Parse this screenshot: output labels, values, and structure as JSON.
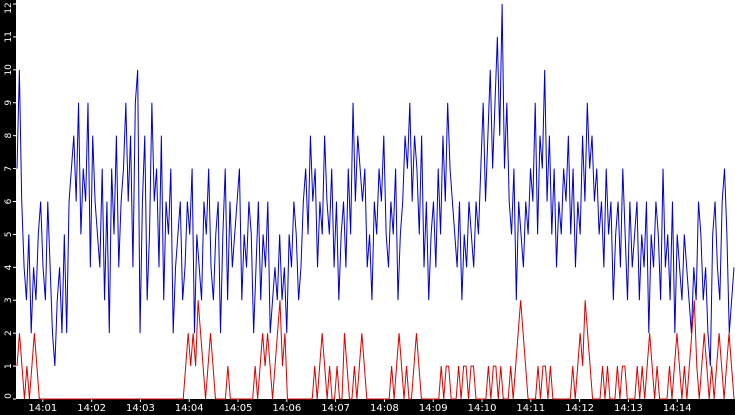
{
  "chart_data": {
    "type": "line",
    "title": "",
    "xlabel": "",
    "ylabel": "",
    "ylim": [
      0,
      12
    ],
    "xlim": [
      "14:00",
      "14:15"
    ],
    "y_ticks": [
      "0",
      "1",
      "2",
      "3",
      "4",
      "5",
      "6",
      "7",
      "8",
      "9",
      "10",
      "11",
      "12"
    ],
    "x_ticks": [
      "14:01",
      "14:02",
      "14:03",
      "14:04",
      "14:05",
      "14:06",
      "14:07",
      "14:08",
      "14:09",
      "14:10",
      "14:11",
      "14:12",
      "14:13",
      "14:14"
    ],
    "grid": false,
    "colors": {
      "background": "#ffffff",
      "axis_band": "#000000",
      "tick_text": "#ffffff"
    },
    "series": [
      {
        "color": "#0000cc",
        "sample_interval_seconds": 2.5,
        "values": [
          7,
          10,
          6,
          4,
          3,
          5,
          2,
          4,
          3,
          5,
          6,
          4,
          3,
          6,
          4,
          2,
          1,
          3,
          4,
          2,
          5,
          2,
          6,
          7,
          8,
          6,
          9,
          5,
          7,
          6,
          9,
          4,
          8,
          6,
          5,
          4,
          7,
          3,
          6,
          2,
          7,
          5,
          8,
          4,
          6,
          7,
          9,
          6,
          8,
          4,
          9,
          10,
          2,
          6,
          8,
          3,
          5,
          9,
          6,
          7,
          4,
          8,
          3,
          6,
          5,
          7,
          2,
          4,
          5,
          6,
          3,
          4,
          6,
          5,
          7,
          2,
          5,
          4,
          3,
          6,
          5,
          7,
          4,
          3,
          5,
          6,
          2,
          5,
          7,
          3,
          6,
          4,
          5,
          6,
          7,
          3,
          5,
          4,
          6,
          5,
          2,
          4,
          6,
          3,
          5,
          4,
          6,
          2,
          3,
          4,
          3,
          5,
          3,
          4,
          2,
          5,
          4,
          6,
          5,
          3,
          4,
          6,
          7,
          5,
          8,
          6,
          7,
          4,
          6,
          5,
          8,
          6,
          5,
          7,
          4,
          6,
          3,
          5,
          6,
          4,
          7,
          5,
          9,
          6,
          8,
          7,
          6,
          7,
          4,
          5,
          3,
          6,
          5,
          7,
          6,
          8,
          5,
          4,
          6,
          5,
          7,
          3,
          5,
          6,
          8,
          7,
          9,
          6,
          8,
          7,
          5,
          8,
          4,
          6,
          3,
          5,
          6,
          4,
          7,
          5,
          8,
          6,
          9,
          7,
          6,
          5,
          4,
          6,
          3,
          5,
          4,
          6,
          5,
          4,
          6,
          5,
          7,
          9,
          6,
          8,
          10,
          7,
          9,
          11,
          8,
          12,
          7,
          9,
          6,
          5,
          7,
          3,
          6,
          5,
          4,
          6,
          5,
          7,
          6,
          9,
          5,
          8,
          7,
          10,
          6,
          8,
          5,
          7,
          4,
          6,
          5,
          7,
          6,
          8,
          5,
          7,
          4,
          6,
          5,
          8,
          6,
          9,
          7,
          8,
          6,
          7,
          5,
          6,
          4,
          7,
          5,
          6,
          3,
          5,
          6,
          4,
          7,
          5,
          3,
          6,
          4,
          5,
          6,
          3,
          5,
          4,
          6,
          2,
          5,
          4,
          6,
          5,
          3,
          7,
          4,
          5,
          3,
          6,
          2,
          5,
          4,
          3,
          5,
          4,
          3,
          2,
          4,
          3,
          6,
          5,
          3,
          4,
          2,
          1,
          5,
          6,
          4,
          3,
          6,
          7,
          5,
          2,
          3,
          4
        ]
      },
      {
        "color": "#dd0000",
        "sample_interval_seconds": 2.5,
        "values": [
          1,
          2,
          1,
          0,
          1,
          0,
          1,
          2,
          1,
          0,
          0,
          0,
          0,
          0,
          0,
          0,
          0,
          0,
          0,
          0,
          0,
          0,
          0,
          0,
          0,
          0,
          0,
          0,
          0,
          0,
          0,
          0,
          0,
          0,
          0,
          0,
          0,
          0,
          0,
          0,
          0,
          0,
          0,
          0,
          0,
          0,
          0,
          0,
          0,
          0,
          0,
          0,
          0,
          0,
          0,
          0,
          0,
          0,
          0,
          0,
          0,
          0,
          0,
          0,
          0,
          0,
          0,
          0,
          1,
          2,
          1,
          2,
          1,
          3,
          2,
          1,
          0,
          1,
          2,
          1,
          0,
          0,
          0,
          0,
          0,
          1,
          0,
          0,
          0,
          0,
          0,
          0,
          0,
          0,
          0,
          0,
          1,
          0,
          1,
          2,
          1,
          2,
          1,
          0,
          1,
          2,
          3,
          1,
          2,
          0,
          0,
          0,
          0,
          0,
          0,
          0,
          0,
          0,
          0,
          0,
          1,
          0,
          1,
          2,
          1,
          0,
          1,
          0,
          0,
          1,
          0,
          0,
          2,
          1,
          0,
          0,
          1,
          0,
          1,
          2,
          1,
          0,
          0,
          0,
          0,
          0,
          0,
          0,
          0,
          0,
          0,
          1,
          0,
          1,
          2,
          1,
          0,
          1,
          0,
          0,
          1,
          2,
          1,
          0,
          0,
          0,
          0,
          0,
          0,
          0,
          0,
          1,
          0,
          1,
          1,
          0,
          0,
          0,
          1,
          0,
          1,
          1,
          0,
          1,
          1,
          0,
          0,
          0,
          0,
          0,
          1,
          0,
          1,
          1,
          0,
          1,
          0,
          0,
          0,
          1,
          0,
          1,
          2,
          3,
          2,
          1,
          0,
          0,
          0,
          0,
          1,
          0,
          1,
          1,
          0,
          1,
          0,
          0,
          0,
          0,
          0,
          0,
          0,
          0,
          1,
          0,
          1,
          2,
          1,
          3,
          2,
          1,
          0,
          0,
          0,
          0,
          1,
          0,
          1,
          0,
          0,
          0,
          1,
          0,
          1,
          1,
          0,
          0,
          0,
          0,
          1,
          0,
          1,
          0,
          1,
          2,
          1,
          0,
          1,
          0,
          0,
          0,
          0,
          1,
          0,
          1,
          2,
          1,
          0,
          1,
          0,
          1,
          2,
          3,
          1,
          0,
          1,
          2,
          1,
          0,
          1,
          0,
          1,
          2,
          1,
          0,
          1,
          2,
          1,
          0
        ]
      }
    ]
  }
}
